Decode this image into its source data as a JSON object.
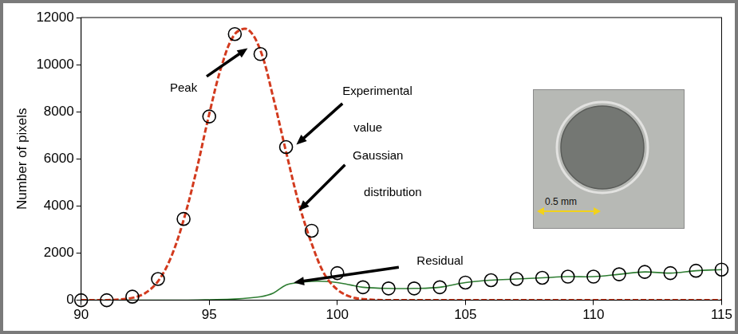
{
  "chart_data": {
    "type": "scatter",
    "y_label": "Number of pixels",
    "xlim": [
      90,
      115
    ],
    "xticks": [
      90,
      95,
      100,
      105,
      110,
      115
    ],
    "ylim": [
      0,
      12000
    ],
    "yticks": [
      0,
      2000,
      4000,
      6000,
      8000,
      10000,
      12000
    ],
    "grid": false,
    "annotations": [
      "Peak",
      "Experimental value",
      "Gaussian distribution",
      "Residual"
    ],
    "inset": {
      "label": "0.5 mm"
    },
    "series": [
      {
        "name": "Experimental value",
        "type": "scatter",
        "color": "#000000",
        "marker": "circle",
        "line_style": "none",
        "x": [
          90,
          91,
          92,
          93,
          94,
          95,
          96,
          97,
          98,
          99,
          100,
          101,
          102,
          103,
          104,
          105,
          106,
          107,
          108,
          109,
          110,
          111,
          112,
          113,
          114,
          115
        ],
        "values": [
          0,
          0,
          150,
          900,
          3450,
          7800,
          11300,
          10450,
          6500,
          2950,
          1150,
          550,
          500,
          500,
          550,
          750,
          850,
          900,
          950,
          1000,
          1000,
          1100,
          1200,
          1150,
          1250,
          1300
        ]
      },
      {
        "name": "Gaussian distribution",
        "type": "line",
        "color": "#d23a1e",
        "marker": "none",
        "line_style": "dashed",
        "x": [
          90,
          91,
          92,
          92.5,
          93,
          93.5,
          94,
          94.5,
          95,
          95.5,
          96,
          96.5,
          97,
          97.5,
          98,
          98.5,
          99,
          99.5,
          100,
          100.5,
          101,
          102,
          105,
          110,
          115
        ],
        "values": [
          0,
          0,
          100,
          300,
          800,
          1800,
          3400,
          5500,
          7900,
          10000,
          11300,
          11500,
          10600,
          8600,
          6300,
          4100,
          2400,
          1100,
          450,
          150,
          50,
          0,
          0,
          0,
          0
        ]
      },
      {
        "name": "Residual",
        "type": "line",
        "color": "#2e7d32",
        "marker": "none",
        "line_style": "solid",
        "x": [
          90,
          92,
          94,
          95,
          96,
          97,
          97.5,
          98,
          98.5,
          99,
          99.5,
          100,
          100.5,
          101,
          102,
          103,
          104,
          105,
          106,
          107,
          108,
          109,
          110,
          111,
          112,
          113,
          114,
          115
        ],
        "values": [
          0,
          0,
          0,
          20,
          50,
          150,
          300,
          650,
          750,
          800,
          800,
          750,
          650,
          550,
          500,
          500,
          550,
          750,
          850,
          900,
          950,
          1000,
          1000,
          1100,
          1200,
          1150,
          1250,
          1300
        ]
      }
    ]
  }
}
